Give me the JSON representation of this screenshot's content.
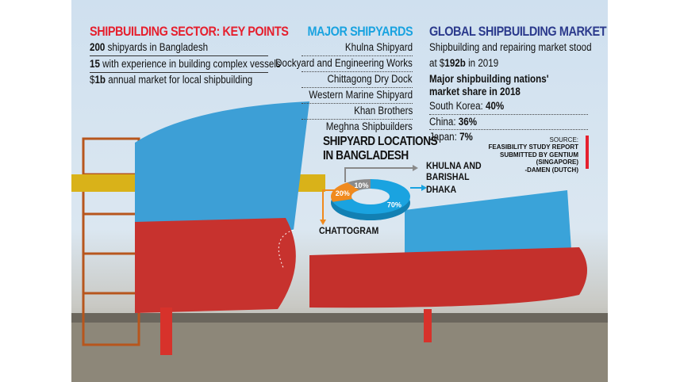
{
  "key_points": {
    "title": "SHIPBUILDING SECTOR: KEY POINTS",
    "items": [
      {
        "bold": "200",
        "text": " shipyards in Bangladesh"
      },
      {
        "bold": "15",
        "text": " with experience in building complex vessels"
      },
      {
        "prefix": "$",
        "bold": "1b",
        "text": " annual market for local shipbuilding"
      }
    ]
  },
  "shipyards": {
    "title": "MAJOR SHIPYARDS",
    "items": [
      "Khulna Shipyard",
      "Dockyard and Engineering Works",
      "Chittagong Dry Dock",
      "Western Marine Shipyard",
      "Khan Brothers",
      "Meghna Shipbuilders"
    ]
  },
  "global": {
    "title": "GLOBAL SHIPBUILDING MARKET",
    "line1": "Shipbuilding and repairing market stood",
    "line2_pre": "at $",
    "line2_bold": "192b",
    "line2_post": " in 2019",
    "subhead1": "Major shipbuilding nations'",
    "subhead2": "market share in 2018",
    "shares": [
      {
        "label": "South Korea: ",
        "value": "40%"
      },
      {
        "label": "China: ",
        "value": "36%"
      },
      {
        "label": "Japan: ",
        "value": "7%"
      }
    ]
  },
  "source": {
    "label": "SOURCE:",
    "lines": [
      "FEASIBILITY STUDY REPORT",
      "SUBMITTED BY GENTIUM",
      "(SINGAPORE)",
      "-DAMEN (DUTCH)"
    ]
  },
  "colors": {
    "red": "#e5202e",
    "cyan": "#1aa3e0",
    "navy": "#2b3a8c",
    "orange": "#f08a1e",
    "grey": "#8a8a8a"
  },
  "chart_data": {
    "type": "pie",
    "title": "SHIPYARD LOCATIONS",
    "subtitle": "IN BANGLADESH",
    "style": "3d-donut",
    "slices": [
      {
        "label": "DHAKA",
        "value": 70,
        "text": "70%",
        "color": "#1aa3e0"
      },
      {
        "label": "CHATTOGRAM",
        "value": 20,
        "text": "20%",
        "color": "#f08a1e"
      },
      {
        "label": "KHULNA AND BARISHAL",
        "value": 10,
        "text": "10%",
        "color": "#8a8a8a"
      }
    ],
    "label_lines": {
      "khulna": [
        "KHULNA AND",
        "BARISHAL"
      ]
    }
  }
}
